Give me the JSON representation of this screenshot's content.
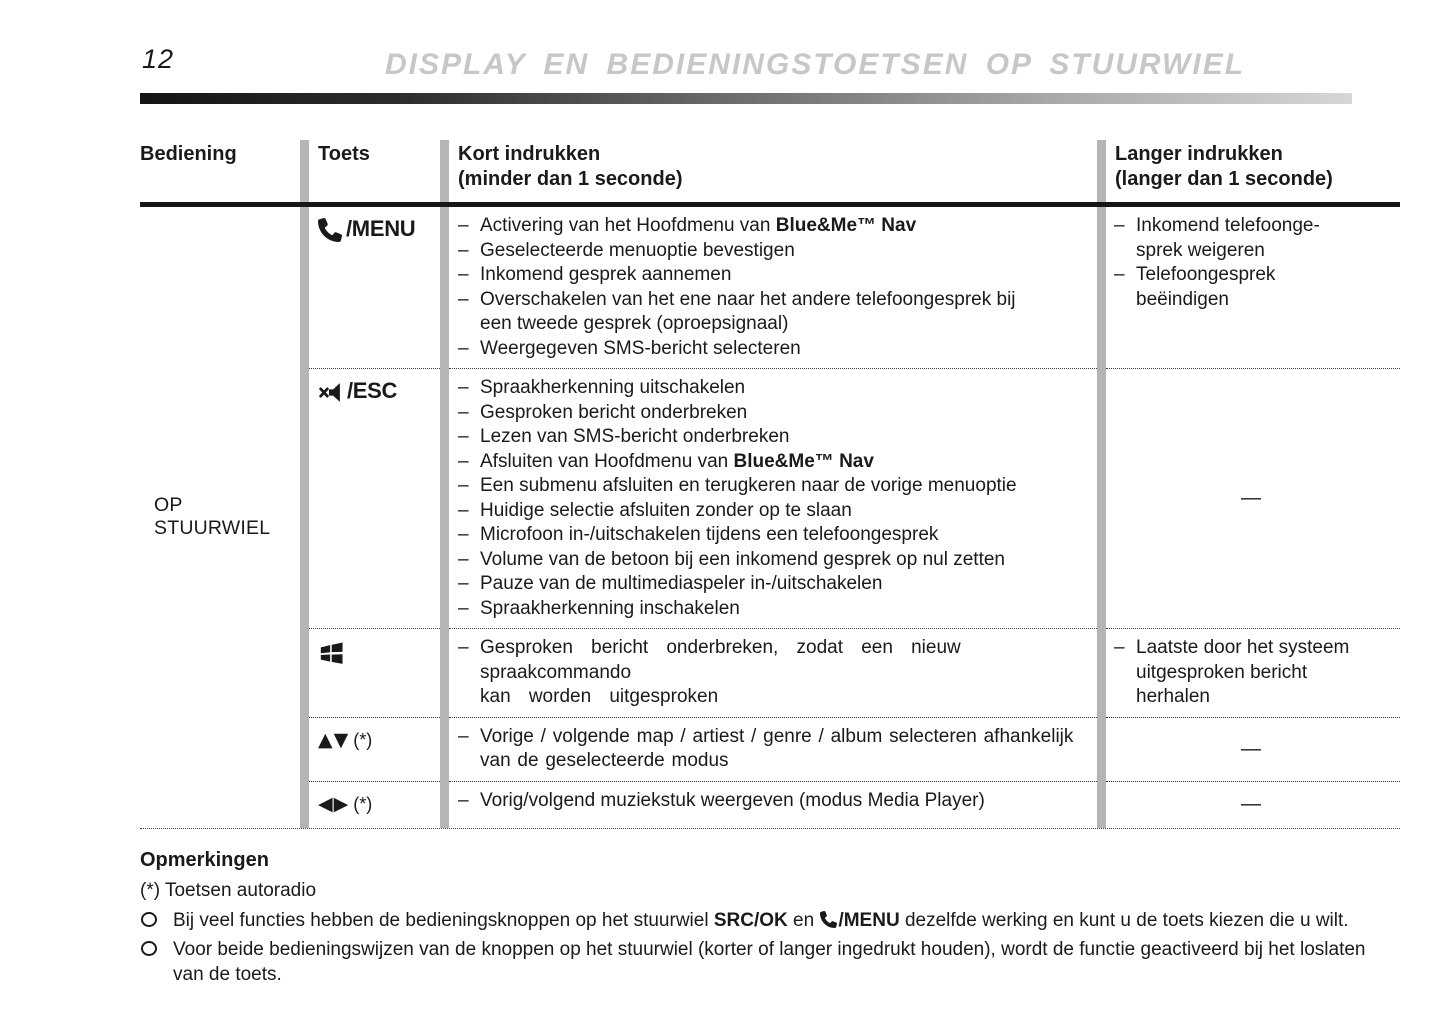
{
  "page": {
    "number": "12",
    "title": "DISPLAY EN BEDIENINGSTOETSEN OP STUURWIEL"
  },
  "table": {
    "headers": {
      "col1": "Bediening",
      "col2": "Toets",
      "col3_line1": "Kort indrukken",
      "col3_line2": "(minder dan 1 seconde)",
      "col4_line1": "Langer indrukken",
      "col4_line2": "(langer dan 1 seconde)"
    },
    "row_group_label": "OP STUURWIEL",
    "empty_cell_dash": "—",
    "rows": [
      {
        "key": "menu",
        "toets": {
          "parts": [
            {
              "icon": "phone-receiver"
            },
            {
              "text": "/MENU",
              "label": true
            }
          ]
        },
        "kort": [
          {
            "parts": [
              {
                "text": "Activering van het Hoofdmenu van "
              },
              {
                "text": "Blue&Me™ Nav",
                "bold": true
              }
            ]
          },
          {
            "parts": [
              {
                "text": "Geselecteerde menuoptie bevestigen"
              }
            ]
          },
          {
            "parts": [
              {
                "text": "Inkomend gesprek aannemen"
              }
            ]
          },
          {
            "parts": [
              {
                "text": "Overschakelen van het ene naar het andere telefoongesprek bij\neen tweede gesprek (oproepsignaal)"
              }
            ]
          },
          {
            "parts": [
              {
                "text": "Weergegeven SMS-bericht selecteren"
              }
            ]
          }
        ],
        "langer": {
          "type": "list",
          "items": [
            {
              "parts": [
                {
                  "text": "Inkomend telefoonge-\nsprek weigeren"
                }
              ]
            },
            {
              "parts": [
                {
                  "text": "Telefoongesprek\nbeëindigen"
                }
              ]
            }
          ]
        }
      },
      {
        "key": "esc",
        "toets": {
          "parts": [
            {
              "icon": "mute-speaker"
            },
            {
              "text": "/ESC",
              "label": true
            }
          ]
        },
        "kort": [
          {
            "parts": [
              {
                "text": "Spraakherkenning uitschakelen"
              }
            ]
          },
          {
            "parts": [
              {
                "text": "Gesproken bericht onderbreken"
              }
            ]
          },
          {
            "parts": [
              {
                "text": "Lezen van SMS-bericht onderbreken"
              }
            ]
          },
          {
            "parts": [
              {
                "text": "Afsluiten van Hoofdmenu van "
              },
              {
                "text": "Blue&Me™ Nav",
                "bold": true
              }
            ]
          },
          {
            "parts": [
              {
                "text": "Een submenu afsluiten en terugkeren naar de vorige menuoptie"
              }
            ]
          },
          {
            "parts": [
              {
                "text": "Huidige selectie afsluiten zonder op te slaan"
              }
            ]
          },
          {
            "parts": [
              {
                "text": "Microfoon in-/uitschakelen tijdens een telefoongesprek"
              }
            ]
          },
          {
            "parts": [
              {
                "text": "Volume van de betoon bij een inkomend gesprek op nul zetten"
              }
            ]
          },
          {
            "parts": [
              {
                "text": "Pauze van de multimediaspeler in-/uitschakelen"
              }
            ]
          },
          {
            "parts": [
              {
                "text": "Spraakherkenning inschakelen"
              }
            ]
          }
        ],
        "langer": {
          "type": "dash"
        }
      },
      {
        "key": "windows",
        "toets": {
          "parts": [
            {
              "icon": "windows-logo"
            }
          ]
        },
        "kort": [
          {
            "spacing": "wide",
            "parts": [
              {
                "text": "Gesproken bericht onderbreken, zodat een nieuw spraakcommando\nkan worden uitgesproken"
              }
            ]
          }
        ],
        "langer": {
          "type": "list",
          "items": [
            {
              "parts": [
                {
                  "text": "Laatste door het systeem\nuitgesproken bericht\nherhalen"
                }
              ]
            }
          ]
        }
      },
      {
        "key": "up-down",
        "toets": {
          "parts": [
            {
              "glyph": "▲▼"
            },
            {
              "text": "(*)",
              "suffix": true
            }
          ]
        },
        "kort": [
          {
            "spacing": "slight",
            "parts": [
              {
                "text": "Vorige / volgende map / artiest / genre / album selecteren afhankelijk\nvan de geselecteerde modus"
              }
            ]
          }
        ],
        "langer": {
          "type": "dash"
        }
      },
      {
        "key": "left-right",
        "toets": {
          "parts": [
            {
              "glyph": "◀▶"
            },
            {
              "text": "(*)",
              "suffix": true
            }
          ]
        },
        "kort": [
          {
            "parts": [
              {
                "text": "Vorig/volgend muziekstuk weergeven (modus Media Player)"
              }
            ]
          }
        ],
        "langer": {
          "type": "dash"
        }
      }
    ]
  },
  "notes": {
    "heading": "Opmerkingen",
    "star_note": "(*) Toetsen autoradio",
    "bullets": [
      {
        "parts": [
          {
            "text": "Bij veel functies hebben de bedieningsknoppen op het stuurwiel "
          },
          {
            "text": "SRC/OK",
            "bold": true
          },
          {
            "text": " en "
          },
          {
            "icon": "phone-receiver"
          },
          {
            "text": "/MENU",
            "bold": true
          },
          {
            "text": " dezelfde werking en kunt u de toets kiezen die u wilt."
          }
        ]
      },
      {
        "parts": [
          {
            "text": "Voor beide bedieningswijzen van de knoppen op het stuurwiel (korter of langer ingedrukt houden), wordt de functie geactiveerd bij het loslaten\nvan de toets."
          }
        ]
      }
    ]
  },
  "colors": {
    "text": "#1a1a1a",
    "title_gray": "#c7c7c9",
    "divider_gray": "#b5b5b5",
    "rule_gradient_start": "#141414",
    "rule_gradient_end": "#d6d6d6"
  }
}
